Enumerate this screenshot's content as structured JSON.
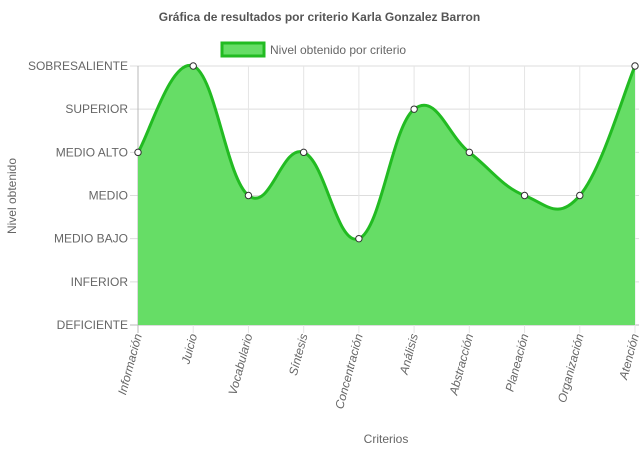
{
  "chart_data": {
    "type": "area",
    "title": "Gráfica de resultados por criterio Karla Gonzalez Barron",
    "xlabel": "Criterios",
    "ylabel": "Nivel obtenido",
    "categories": [
      "Información",
      "Juicio",
      "Vocabulario",
      "Síntesis",
      "Concentración",
      "Análisis",
      "Abstracción",
      "Planeación",
      "Organización",
      "Atención"
    ],
    "y_levels": [
      "DEFICIENTE",
      "INFERIOR",
      "MEDIO BAJO",
      "MEDIO",
      "MEDIO ALTO",
      "SUPERIOR",
      "SOBRESALIENTE"
    ],
    "series": [
      {
        "name": "Nivel obtenido por criterio",
        "values": [
          "MEDIO ALTO",
          "SOBRESALIENTE",
          "MEDIO",
          "MEDIO ALTO",
          "MEDIO BAJO",
          "SUPERIOR",
          "MEDIO ALTO",
          "MEDIO",
          "MEDIO",
          "SOBRESALIENTE"
        ]
      }
    ],
    "legend_position": "top",
    "grid": true,
    "colors": {
      "fill": "#66dd66",
      "line": "#22bb22",
      "point_fill": "#ffffff",
      "point_stroke": "#333333"
    }
  }
}
